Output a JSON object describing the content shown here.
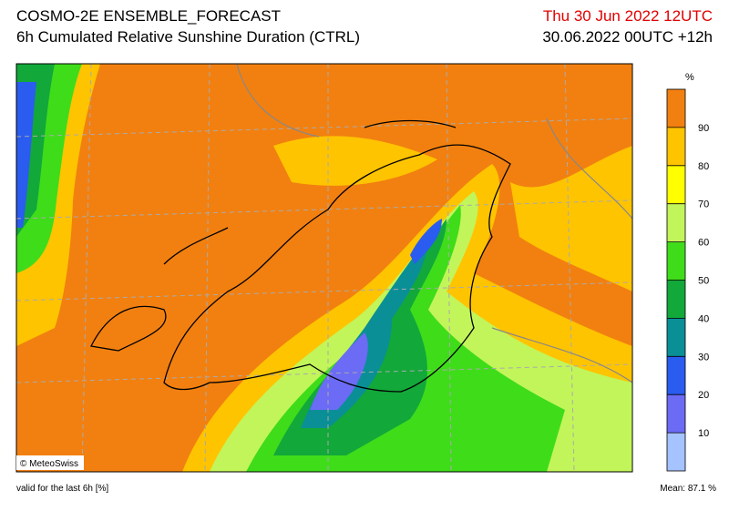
{
  "header": {
    "title": "COSMO-2E ENSEMBLE_FORECAST",
    "subtitle": "6h Cumulated Relative Sunshine Duration (CTRL)",
    "valid_time": "Thu 30 Jun 2022 12UTC",
    "run": "30.06.2022 00UTC +12h"
  },
  "legend": {
    "unit": "%",
    "range": [
      0,
      100
    ],
    "ticks": [
      10,
      20,
      30,
      40,
      50,
      60,
      70,
      80,
      90
    ],
    "colors": [
      "#a4c3ff",
      "#6b6bf5",
      "#2a5cf0",
      "#0a8f96",
      "#12a83a",
      "#3fdc1a",
      "#c2f55a",
      "#ffff00",
      "#ffc400",
      "#f28010"
    ]
  },
  "credit": "© MeteoSwiss",
  "footer": {
    "note": "valid for the last 6h [%]",
    "mean": "Mean:  87.1 %"
  }
}
